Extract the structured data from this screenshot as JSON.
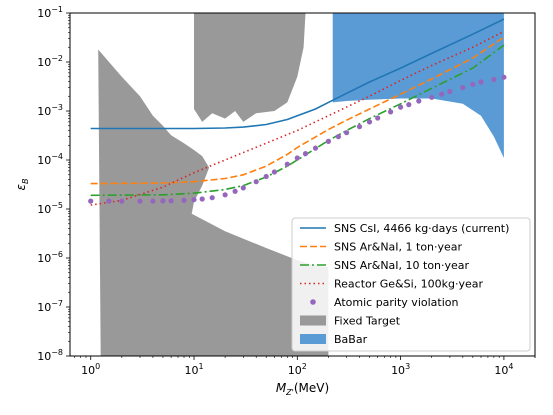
{
  "chart_data": {
    "type": "line",
    "xscale": "log",
    "yscale": "log",
    "xlim": [
      0.63,
      20000
    ],
    "ylim": [
      1e-08,
      0.1
    ],
    "xlabel": {
      "main": "M",
      "sub": "Z'",
      "suffix": "(MeV)"
    },
    "ylabel": {
      "main": "ε",
      "sub": "B"
    },
    "x_ticks": [
      {
        "base": "10",
        "exp": "0",
        "value": 1
      },
      {
        "base": "10",
        "exp": "1",
        "value": 10
      },
      {
        "base": "10",
        "exp": "2",
        "value": 100
      },
      {
        "base": "10",
        "exp": "3",
        "value": 1000
      },
      {
        "base": "10",
        "exp": "4",
        "value": 10000
      }
    ],
    "y_ticks": [
      {
        "base": "10",
        "exp": "−8",
        "value": 1e-08
      },
      {
        "base": "10",
        "exp": "−7",
        "value": 1e-07
      },
      {
        "base": "10",
        "exp": "−6",
        "value": 1e-06
      },
      {
        "base": "10",
        "exp": "−5",
        "value": 1e-05
      },
      {
        "base": "10",
        "exp": "−4",
        "value": 0.0001
      },
      {
        "base": "10",
        "exp": "−3",
        "value": 0.001
      },
      {
        "base": "10",
        "exp": "−2",
        "value": 0.01
      },
      {
        "base": "10",
        "exp": "−1",
        "value": 0.1
      }
    ],
    "legend_position": "lower-right",
    "series": [
      {
        "name": "SNS CsI, 4466 kg·days (current)",
        "kind": "line",
        "style": "solid",
        "color": "#1f77b4",
        "x": [
          1,
          10,
          20,
          30,
          50,
          80,
          100,
          150,
          200,
          300,
          500,
          1000,
          2000,
          5000,
          10000
        ],
        "y": [
          0.00044,
          0.00044,
          0.00045,
          0.00047,
          0.00053,
          0.00067,
          0.0008,
          0.0011,
          0.0015,
          0.0023,
          0.0039,
          0.0075,
          0.015,
          0.037,
          0.075
        ]
      },
      {
        "name": "SNS Ar&NaI, 1 ton·year",
        "kind": "line",
        "style": "dashed",
        "color": "#ff7f0e",
        "x": [
          1,
          5,
          10,
          20,
          30,
          50,
          80,
          100,
          200,
          300,
          500,
          1000,
          2000,
          5000,
          10000
        ],
        "y": [
          3.3e-05,
          3.4e-05,
          3.6e-05,
          4.2e-05,
          5e-05,
          7.5e-05,
          0.00013,
          0.00018,
          0.00042,
          0.00065,
          0.0011,
          0.0022,
          0.0045,
          0.012,
          0.032
        ]
      },
      {
        "name": "SNS Ar&NaI, 10 ton·year",
        "kind": "line",
        "style": "dashdot",
        "color": "#2ca02c",
        "x": [
          1,
          5,
          10,
          20,
          30,
          50,
          80,
          100,
          200,
          300,
          500,
          1000,
          2000,
          5000,
          10000
        ],
        "y": [
          1.9e-05,
          1.95e-05,
          2.1e-05,
          2.5e-05,
          3e-05,
          4.5e-05,
          7.5e-05,
          0.0001,
          0.00025,
          0.0004,
          0.0007,
          0.0014,
          0.0029,
          0.0075,
          0.022
        ]
      },
      {
        "name": "Reactor Ge&Si, 100kg·year",
        "kind": "line",
        "style": "dotted",
        "color": "#d62728",
        "x": [
          1,
          2,
          5,
          10,
          20,
          50,
          100,
          200,
          500,
          1000,
          2000,
          5000,
          10000
        ],
        "y": [
          1.2e-05,
          1.5e-05,
          2.8e-05,
          5.5e-05,
          0.0001,
          0.00022,
          0.0004,
          0.0008,
          0.002,
          0.0042,
          0.0085,
          0.02,
          0.042
        ]
      },
      {
        "name": "Atomic parity violation",
        "kind": "markers",
        "style": "dots",
        "color": "#9467bd",
        "x": [
          1,
          1.5,
          2,
          3,
          4,
          5,
          6,
          8,
          10,
          12,
          15,
          20,
          25,
          30,
          40,
          50,
          60,
          80,
          100,
          120,
          150,
          200,
          250,
          300,
          400,
          500,
          600,
          800,
          1000,
          1200,
          1500,
          2000,
          2500,
          3000,
          4000,
          5000,
          6000,
          8000,
          10000
        ],
        "y": [
          1.45e-05,
          1.45e-05,
          1.45e-05,
          1.45e-05,
          1.45e-05,
          1.46e-05,
          1.47e-05,
          1.5e-05,
          1.55e-05,
          1.62e-05,
          1.75e-05,
          2.05e-05,
          2.5e-05,
          3e-05,
          4.3e-05,
          5.8e-05,
          7.5e-05,
          0.00012,
          0.00017,
          0.00022,
          0.0003,
          0.00045,
          0.00063,
          0.00082,
          0.0013,
          0.0018,
          0.0024,
          0.0036,
          0.0005,
          0.0007,
          0.001,
          0.0016,
          0.0024,
          0.0033,
          0.0052,
          0.0075,
          0.01,
          0.016,
          0.0046
        ],
        "_y_note": "",
        "y_values": [
          1.45e-05,
          1.45e-05,
          1.45e-05,
          1.45e-05,
          1.45e-05,
          1.46e-05,
          1.47e-05,
          1.5e-05,
          1.55e-05,
          1.6e-05,
          1.7e-05,
          1.95e-05,
          2.3e-05,
          2.7e-05,
          3.6e-05,
          4.6e-05,
          5.7e-05,
          8.2e-05,
          0.00011,
          0.000135,
          0.000175,
          0.00024,
          0.0003,
          0.00036,
          0.00048,
          0.0006,
          0.00072,
          0.00096,
          0.0012,
          0.00135,
          0.0016,
          0.0019,
          0.0022,
          0.0025,
          0.003,
          0.0035,
          0.0039,
          0.0044,
          0.0049
        ]
      },
      {
        "name": "Fixed Target",
        "kind": "area",
        "color": "#999999",
        "polygon": [
          [
            1.18,
            0.018
          ],
          [
            2.0,
            0.005
          ],
          [
            3.0,
            0.002
          ],
          [
            4.0,
            0.0008
          ],
          [
            5.0,
            0.0005
          ],
          [
            6.0,
            0.00032
          ],
          [
            8.0,
            0.00022
          ],
          [
            10.0,
            0.00016
          ],
          [
            12.0,
            0.00012
          ],
          [
            14.0,
            7e-05
          ],
          [
            12.0,
            3e-05
          ],
          [
            10.0,
            1.4e-05
          ],
          [
            9.5,
            8e-06
          ],
          [
            20.0,
            3.5e-06
          ],
          [
            50.0,
            1.6e-06
          ],
          [
            100.0,
            9e-07
          ],
          [
            150.0,
            7e-07
          ],
          [
            200.0,
            6.5e-07
          ],
          [
            200.0,
            1e-08
          ],
          [
            1.25,
            1e-08
          ],
          [
            1.18,
            0.018
          ]
        ],
        "polygon_upper": [
          [
            10.0,
            0.1
          ],
          [
            120.0,
            0.1
          ],
          [
            115.0,
            0.02
          ],
          [
            100.0,
            0.005
          ],
          [
            80.0,
            0.0015
          ],
          [
            60.0,
            0.001
          ],
          [
            40.0,
            0.0009
          ],
          [
            30.0,
            0.0006
          ],
          [
            25.0,
            0.001
          ],
          [
            20.0,
            0.0007
          ],
          [
            15.0,
            0.0009
          ],
          [
            12.0,
            0.0006
          ],
          [
            10.0,
            0.0011
          ],
          [
            10.0,
            0.1
          ]
        ]
      },
      {
        "name": "BaBar",
        "kind": "area",
        "color": "#5b9bd5",
        "polygon": [
          [
            220,
            0.1
          ],
          [
            10000,
            0.1
          ],
          [
            10000,
            0.00011
          ],
          [
            8000,
            0.0003
          ],
          [
            6000,
            0.0008
          ],
          [
            4000,
            0.0014
          ],
          [
            2000,
            0.0018
          ],
          [
            1000,
            0.0018
          ],
          [
            500,
            0.0017
          ],
          [
            300,
            0.0016
          ],
          [
            220,
            0.0015
          ],
          [
            220,
            0.1
          ]
        ]
      }
    ]
  }
}
